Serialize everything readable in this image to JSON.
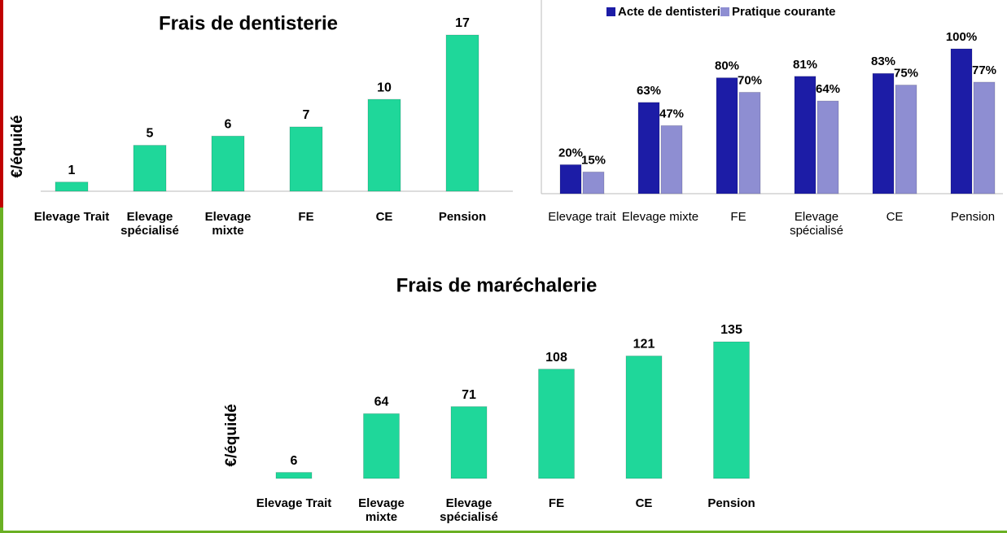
{
  "chart_data": [
    {
      "type": "bar",
      "title": "Frais de dentisterie",
      "ylabel": "€/équidé",
      "categories": [
        "Elevage Trait",
        "Elevage spécialisé",
        "Elevage mixte",
        "FE",
        "CE",
        "Pension"
      ],
      "values": [
        1,
        5,
        6,
        7,
        10,
        17
      ],
      "color": "#1fd79a",
      "ylim": [
        0,
        17
      ]
    },
    {
      "type": "grouped_bar",
      "legend": "top",
      "categories": [
        "Elevage trait",
        "Elevage mixte",
        "FE",
        "Elevage spécialisé",
        "CE",
        "Pension"
      ],
      "series": [
        {
          "name": "Acte de dentisterie",
          "color": "#1c1ca6",
          "values": [
            20,
            63,
            80,
            81,
            83,
            100
          ],
          "value_labels": [
            "20%",
            "63%",
            "80%",
            "81%",
            "83%",
            "100%"
          ]
        },
        {
          "name": "Pratique courante",
          "color": "#8e8ed2",
          "values": [
            15,
            47,
            70,
            64,
            75,
            77
          ],
          "value_labels": [
            "15%",
            "47%",
            "70%",
            "64%",
            "75%",
            "77%"
          ]
        }
      ],
      "ylim": [
        0,
        100
      ]
    },
    {
      "type": "bar",
      "title": "Frais de maréchalerie",
      "ylabel": "€/équidé",
      "categories": [
        "Elevage Trait",
        "Elevage mixte",
        "Elevage spécialisé",
        "FE",
        "CE",
        "Pension"
      ],
      "values": [
        6,
        64,
        71,
        108,
        121,
        135
      ],
      "color": "#1fd79a",
      "ylim": [
        0,
        135
      ]
    }
  ]
}
